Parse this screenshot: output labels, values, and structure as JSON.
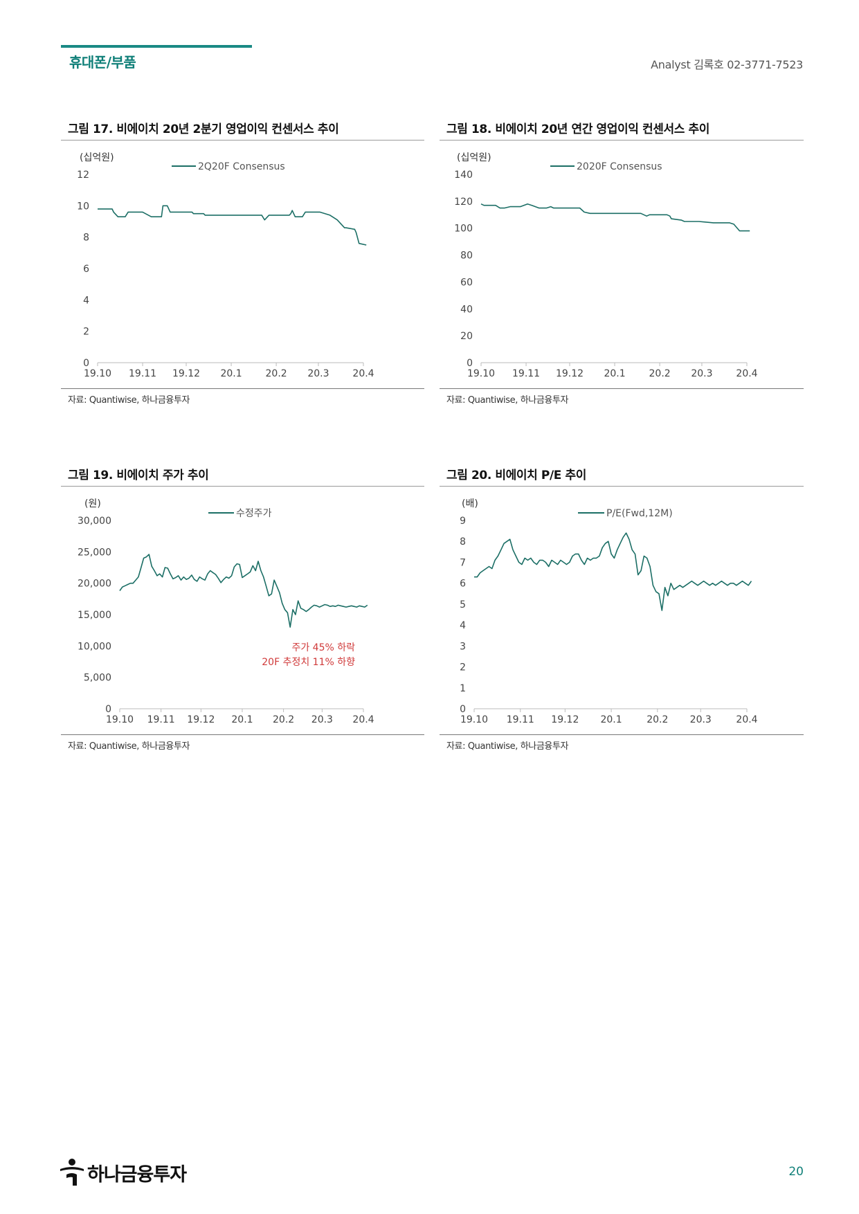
{
  "header": {
    "section": "휴대폰/부품",
    "analyst": "Analyst 김록호 02-3771-7523"
  },
  "footer": {
    "brand": "하나금융투자",
    "page_number": "20"
  },
  "colors": {
    "line": "#1b6e65",
    "accent": "#1a8a85",
    "annotation": "#d03a3a"
  },
  "chart_data": [
    {
      "id": "fig17",
      "type": "line",
      "title": "그림 17. 비에이치 20년 2분기 영업이익 컨센서스 추이",
      "unit_label": "(십억원)",
      "source": "자료: Quantiwise, 하나금융투자",
      "y_ticks": [
        "0",
        "2",
        "4",
        "6",
        "8",
        "10",
        "12"
      ],
      "ylim": [
        0,
        12
      ],
      "x_ticks": [
        "19.10",
        "19.11",
        "19.12",
        "20.1",
        "20.2",
        "20.3",
        "20.4"
      ],
      "x_tick_pos": [
        0,
        31,
        61,
        92,
        123,
        152,
        183
      ],
      "x_max": 183,
      "series": [
        {
          "name": "2Q20F Consensus",
          "x": [
            0,
            10,
            11,
            14,
            19,
            21,
            31,
            37,
            44,
            45,
            48,
            50,
            51,
            65,
            66,
            73,
            74,
            100,
            113,
            115,
            118,
            127,
            132,
            133,
            134,
            136,
            141,
            143,
            148,
            153,
            160,
            165,
            170,
            171,
            177,
            178,
            180,
            185
          ],
          "y": [
            9.8,
            9.8,
            9.6,
            9.3,
            9.3,
            9.6,
            9.6,
            9.3,
            9.3,
            10.0,
            10.0,
            9.6,
            9.6,
            9.6,
            9.5,
            9.5,
            9.4,
            9.4,
            9.4,
            9.1,
            9.4,
            9.4,
            9.4,
            9.5,
            9.7,
            9.3,
            9.3,
            9.6,
            9.6,
            9.6,
            9.4,
            9.1,
            8.6,
            8.6,
            8.5,
            8.3,
            7.6,
            7.5
          ]
        }
      ]
    },
    {
      "id": "fig18",
      "type": "line",
      "title": "그림 18. 비에이치 20년 연간 영업이익 컨센서스 추이",
      "unit_label": "(십억원)",
      "source": "자료: Quantiwise, 하나금융투자",
      "y_ticks": [
        "0",
        "20",
        "40",
        "60",
        "80",
        "100",
        "120",
        "140"
      ],
      "ylim": [
        0,
        140
      ],
      "x_ticks": [
        "19.10",
        "19.11",
        "19.12",
        "20.1",
        "20.2",
        "20.3",
        "20.4"
      ],
      "x_tick_pos": [
        0,
        31,
        61,
        92,
        123,
        152,
        183
      ],
      "x_max": 183,
      "series": [
        {
          "name": "2020F Consensus",
          "x": [
            0,
            2,
            10,
            13,
            16,
            20,
            27,
            32,
            35,
            40,
            45,
            48,
            50,
            56,
            62,
            68,
            71,
            75,
            90,
            110,
            114,
            116,
            128,
            130,
            131,
            138,
            140,
            147,
            150,
            160,
            168,
            171,
            174,
            178,
            183,
            185
          ],
          "y": [
            118,
            117,
            117,
            115,
            115,
            116,
            116,
            118,
            117,
            115,
            115,
            116,
            115,
            115,
            115,
            115,
            112,
            111,
            111,
            111,
            109,
            110,
            110,
            109,
            107,
            106,
            105,
            105,
            105,
            104,
            104,
            104,
            103,
            98,
            98,
            98
          ]
        }
      ]
    },
    {
      "id": "fig19",
      "type": "line",
      "title": "그림 19. 비에이치 주가 추이",
      "unit_label": "(원)",
      "source": "자료: Quantiwise, 하나금융투자",
      "y_ticks": [
        "0",
        "5,000",
        "10,000",
        "15,000",
        "20,000",
        "25,000",
        "30,000"
      ],
      "ylim": [
        0,
        30000
      ],
      "x_ticks": [
        "19.10",
        "19.11",
        "19.12",
        "20.1",
        "20.2",
        "20.3",
        "20.4"
      ],
      "x_tick_pos": [
        0,
        31,
        61,
        92,
        123,
        152,
        183
      ],
      "x_max": 183,
      "annotations": [
        "주가 45% 하락",
        "20F 추정치 11% 하향"
      ],
      "series": [
        {
          "name": "수정주가",
          "x": [
            0,
            2,
            4,
            6,
            8,
            10,
            12,
            14,
            16,
            18,
            20,
            22,
            24,
            26,
            28,
            30,
            32,
            34,
            36,
            38,
            40,
            42,
            44,
            46,
            48,
            50,
            52,
            54,
            56,
            58,
            60,
            62,
            64,
            66,
            68,
            70,
            72,
            74,
            76,
            78,
            80,
            82,
            84,
            86,
            88,
            90,
            92,
            94,
            96,
            98,
            100,
            102,
            104,
            106,
            108,
            110,
            112,
            114,
            116,
            118,
            120,
            122,
            124,
            126,
            128,
            130,
            132,
            134,
            136,
            138,
            140,
            142,
            144,
            146,
            148,
            150,
            152,
            154,
            156,
            158,
            160,
            162,
            164,
            166,
            168,
            170,
            172,
            174,
            176,
            178,
            180,
            182,
            184,
            186
          ],
          "y": [
            18800,
            19400,
            19600,
            19800,
            20000,
            20000,
            20500,
            21000,
            22500,
            24000,
            24200,
            24600,
            22700,
            22000,
            21200,
            21500,
            21000,
            22500,
            22400,
            21500,
            20700,
            20900,
            21200,
            20500,
            21000,
            20600,
            20800,
            21300,
            20600,
            20300,
            21000,
            20700,
            20500,
            21500,
            22000,
            21700,
            21400,
            20800,
            20100,
            20600,
            21000,
            20800,
            21200,
            22600,
            23100,
            23000,
            20900,
            21200,
            21500,
            21800,
            22800,
            22000,
            23500,
            22000,
            21000,
            19500,
            18000,
            18300,
            20500,
            19500,
            18500,
            16800,
            15800,
            15300,
            13000,
            15800,
            15000,
            17200,
            16000,
            15800,
            15500,
            15800,
            16200,
            16500,
            16400,
            16200,
            16400,
            16600,
            16500,
            16300,
            16400,
            16300,
            16500,
            16400,
            16300,
            16200,
            16300,
            16400,
            16300,
            16200,
            16400,
            16300,
            16200,
            16500
          ]
        }
      ]
    },
    {
      "id": "fig20",
      "type": "line",
      "title": "그림 20. 비에이치 P/E 추이",
      "unit_label": "(배)",
      "source": "자료: Quantiwise, 하나금융투자",
      "y_ticks": [
        "0",
        "1",
        "2",
        "3",
        "4",
        "5",
        "6",
        "7",
        "8",
        "9"
      ],
      "ylim": [
        0,
        9
      ],
      "x_ticks": [
        "19.10",
        "19.11",
        "19.12",
        "20.1",
        "20.2",
        "20.3",
        "20.4"
      ],
      "x_tick_pos": [
        0,
        31,
        61,
        92,
        123,
        152,
        183
      ],
      "x_max": 183,
      "series": [
        {
          "name": "P/E(Fwd,12M)",
          "x": [
            0,
            2,
            4,
            6,
            8,
            10,
            12,
            14,
            16,
            18,
            20,
            22,
            24,
            26,
            28,
            30,
            32,
            34,
            36,
            38,
            40,
            42,
            44,
            46,
            48,
            50,
            52,
            54,
            56,
            58,
            60,
            62,
            64,
            66,
            68,
            70,
            72,
            74,
            76,
            78,
            80,
            82,
            84,
            86,
            88,
            90,
            92,
            94,
            96,
            98,
            100,
            102,
            104,
            106,
            108,
            110,
            112,
            114,
            116,
            118,
            120,
            122,
            124,
            126,
            128,
            130,
            132,
            134,
            136,
            138,
            140,
            142,
            144,
            146,
            148,
            150,
            152,
            154,
            156,
            158,
            160,
            162,
            164,
            166,
            168,
            170,
            172,
            174,
            176,
            178,
            180,
            182,
            184,
            186
          ],
          "y": [
            6.3,
            6.3,
            6.5,
            6.6,
            6.7,
            6.8,
            6.7,
            7.1,
            7.3,
            7.6,
            7.9,
            8.0,
            8.1,
            7.6,
            7.3,
            7.0,
            6.9,
            7.2,
            7.1,
            7.2,
            7.0,
            6.9,
            7.1,
            7.1,
            7.0,
            6.8,
            7.1,
            7.0,
            6.9,
            7.1,
            7.0,
            6.9,
            7.0,
            7.3,
            7.4,
            7.4,
            7.1,
            6.9,
            7.2,
            7.1,
            7.2,
            7.2,
            7.3,
            7.7,
            7.9,
            8.0,
            7.4,
            7.2,
            7.6,
            7.9,
            8.2,
            8.4,
            8.1,
            7.6,
            7.4,
            6.4,
            6.6,
            7.3,
            7.2,
            6.8,
            5.9,
            5.6,
            5.5,
            4.7,
            5.8,
            5.4,
            6.0,
            5.7,
            5.8,
            5.9,
            5.8,
            5.9,
            6.0,
            6.1,
            6.0,
            5.9,
            6.0,
            6.1,
            6.0,
            5.9,
            6.0,
            5.9,
            6.0,
            6.1,
            6.0,
            5.9,
            6.0,
            6.0,
            5.9,
            6.0,
            6.1,
            6.0,
            5.9,
            6.1
          ]
        }
      ]
    }
  ]
}
